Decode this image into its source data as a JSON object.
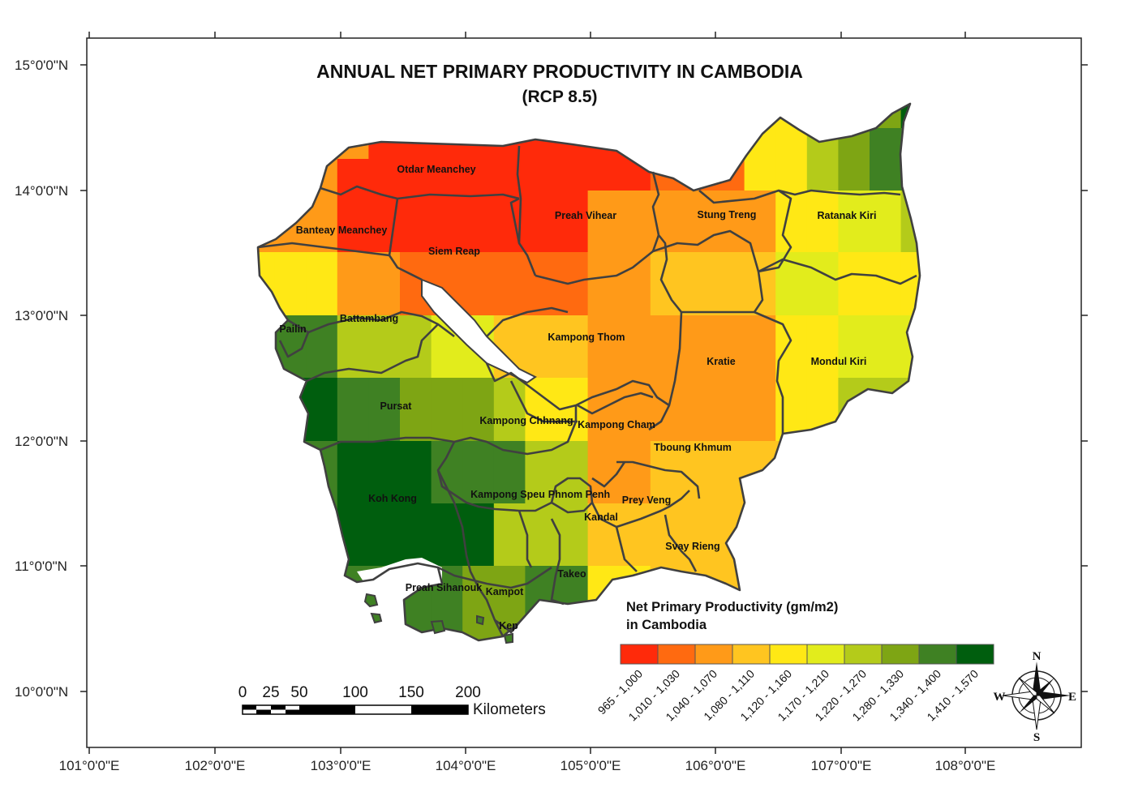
{
  "title": "ANNUAL NET PRIMARY PRODUCTIVITY IN CAMBODIA",
  "subtitle": "(RCP 8.5)",
  "lat_labels": [
    "15°0'0\"N",
    "14°0'0\"N",
    "13°0'0\"N",
    "12°0'0\"N",
    "11°0'0\"N",
    "10°0'0\"N"
  ],
  "lon_labels": [
    "101°0'0\"E",
    "102°0'0\"E",
    "103°0'0\"E",
    "104°0'0\"E",
    "105°0'0\"E",
    "106°0'0\"E",
    "107°0'0\"E",
    "108°0'0\"E"
  ],
  "provinces": [
    "Otdar Meanchey",
    "Preah Vihear",
    "Stung Treng",
    "Ratanak Kiri",
    "Banteay Meanchey",
    "Siem Reap",
    "Battambang",
    "Pailin",
    "Kampong Thom",
    "Kratie",
    "Mondul Kiri",
    "Pursat",
    "Kampong Chhnang",
    "Kampong Cham",
    "Tboung Khmum",
    "Koh Kong",
    "Kampong Speu",
    "Phnom Penh",
    "Prey Veng",
    "Kandal",
    "Svay Rieng",
    "Takeo",
    "Preah Sihanouk",
    "Kampot",
    "Kep"
  ],
  "legend": {
    "title_line1": "Net Primary Productivity (gm/m2)",
    "title_line2": "in Cambodia",
    "classes": [
      {
        "label": "965 - 1,000",
        "color": "#ff2a0a"
      },
      {
        "label": "1,010 - 1,030",
        "color": "#ff6a10"
      },
      {
        "label": "1,040 - 1,070",
        "color": "#ff9a18"
      },
      {
        "label": "1,080 - 1,110",
        "color": "#ffc520"
      },
      {
        "label": "1,120 - 1,160",
        "color": "#ffe815"
      },
      {
        "label": "1,170 - 1,210",
        "color": "#e2ec1c"
      },
      {
        "label": "1,220 - 1,270",
        "color": "#b4cb1a"
      },
      {
        "label": "1,280 - 1,330",
        "color": "#7ea514"
      },
      {
        "label": "1,340 - 1,400",
        "color": "#3f8123"
      },
      {
        "label": "1,410 - 1,570",
        "color": "#005e0e"
      }
    ]
  },
  "scale_bar": {
    "ticks": [
      "0",
      "25",
      "50",
      "100",
      "150",
      "200"
    ],
    "unit": "Kilometers"
  },
  "compass": {
    "n": "N",
    "s": "S",
    "e": "E",
    "w": "W"
  },
  "colors": {
    "border": "#404040",
    "frame": "#222222",
    "water": "#ffffff"
  }
}
